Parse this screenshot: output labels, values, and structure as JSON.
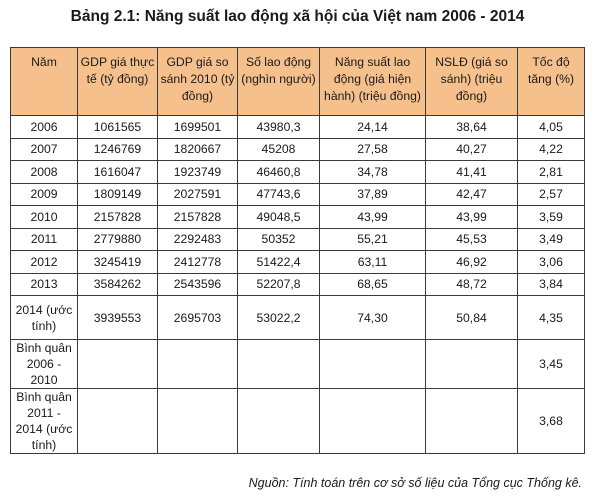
{
  "title": "Bảng 2.1: Năng suất lao động xã hội của Việt nam 2006 - 2014",
  "table": {
    "headers": [
      "Năm",
      "GDP giá thực tế (tỷ đồng)",
      "GDP giá so sánh 2010 (tỷ đồng)",
      "Số lao động (nghìn người)",
      "Năng suất lao động (giá hiện hành) (triệu đồng)",
      "NSLĐ (giá so sánh) (triệu đồng)",
      "Tốc độ tăng (%)"
    ],
    "rows": [
      [
        "2006",
        "1061565",
        "1699501",
        "43980,3",
        "24,14",
        "38,64",
        "4,05"
      ],
      [
        "2007",
        "1246769",
        "1820667",
        "45208",
        "27,58",
        "40,27",
        "4,22"
      ],
      [
        "2008",
        "1616047",
        "1923749",
        "46460,8",
        "34,78",
        "41,41",
        "2,81"
      ],
      [
        "2009",
        "1809149",
        "2027591",
        "47743,6",
        "37,89",
        "42,47",
        "2,57"
      ],
      [
        "2010",
        "2157828",
        "2157828",
        "49048,5",
        "43,99",
        "43,99",
        "3,59"
      ],
      [
        "2011",
        "2779880",
        "2292483",
        "50352",
        "55,21",
        "45,53",
        "3,49"
      ],
      [
        "2012",
        "3245419",
        "2412778",
        "51422,4",
        "63,11",
        "46,92",
        "3,06"
      ],
      [
        "2013",
        "3584262",
        "2543596",
        "52207,8",
        "68,65",
        "48,72",
        "3,84"
      ],
      [
        "2014 (ước tính)",
        "3939553",
        "2695703",
        "53022,2",
        "74,30",
        "50,84",
        "4,35"
      ],
      [
        "Bình quân 2006 - 2010",
        "",
        "",
        "",
        "",
        "",
        "3,45"
      ],
      [
        "Bình quân 2011 - 2014 (ước tính)",
        "",
        "",
        "",
        "",
        "",
        "3,68"
      ]
    ]
  },
  "source": "Nguồn: Tính toán trên cơ sở số liệu của Tổng cục Thống kê."
}
